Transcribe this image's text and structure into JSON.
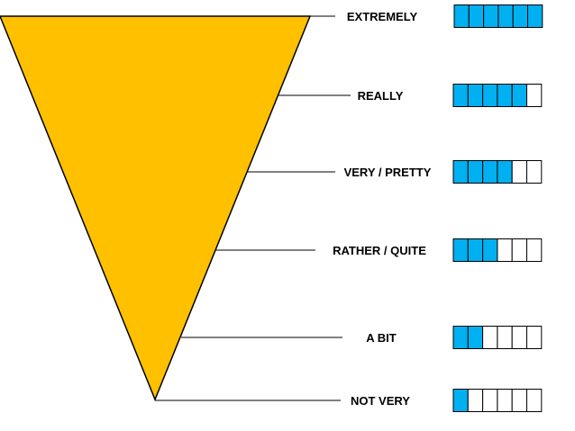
{
  "funnel": {
    "fill_color": "#FFC000",
    "outline_color": "#000000"
  },
  "meter": {
    "segments_total": 6,
    "filled_color": "#00B0F0",
    "empty_color": "#FFFFFF"
  },
  "levels": [
    {
      "label": "EXTREMELY",
      "filled": 6
    },
    {
      "label": "REALLY",
      "filled": 5
    },
    {
      "label": "VERY / PRETTY",
      "filled": 4
    },
    {
      "label": "RATHER / QUITE",
      "filled": 3
    },
    {
      "label": "A BIT",
      "filled": 2
    },
    {
      "label": "NOT VERY",
      "filled": 1
    }
  ]
}
